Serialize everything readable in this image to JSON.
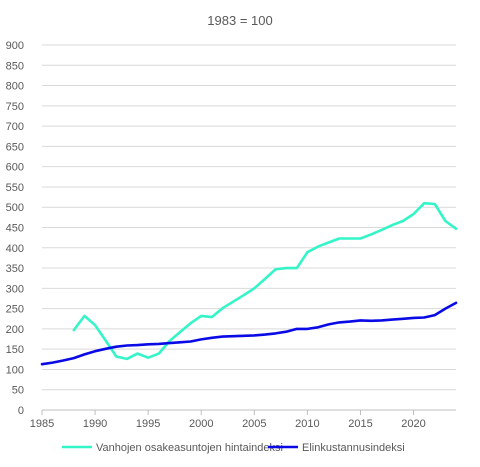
{
  "chart_data": {
    "type": "line",
    "title": "1983 = 100",
    "xlabel": "",
    "ylabel": "",
    "xlim": [
      1985,
      2024
    ],
    "ylim": [
      0,
      900
    ],
    "x_ticks": [
      1985,
      1990,
      1995,
      2000,
      2005,
      2010,
      2015,
      2020
    ],
    "y_ticks": [
      0,
      50,
      100,
      150,
      200,
      250,
      300,
      350,
      400,
      450,
      500,
      550,
      600,
      650,
      700,
      750,
      800,
      850,
      900
    ],
    "grid": true,
    "legend_position": "bottom",
    "series": [
      {
        "name": "Vanhojen osakeasuntojen hintaindeksi",
        "color": "#33f5c8",
        "x": [
          1988,
          1989,
          1990,
          1991,
          1992,
          1993,
          1994,
          1995,
          1996,
          1997,
          1998,
          1999,
          2000,
          2001,
          2002,
          2003,
          2004,
          2005,
          2006,
          2007,
          2008,
          2009,
          2010,
          2011,
          2012,
          2013,
          2014,
          2015,
          2016,
          2017,
          2018,
          2019,
          2020,
          2021,
          2022,
          2023,
          2024
        ],
        "values": [
          197,
          232,
          209,
          171,
          132,
          126,
          139,
          129,
          139,
          170,
          192,
          214,
          232,
          229,
          251,
          267,
          283,
          300,
          323,
          347,
          350,
          350,
          389,
          403,
          413,
          423,
          423,
          423,
          433,
          444,
          456,
          466,
          483,
          510,
          508,
          466,
          447
        ]
      },
      {
        "name": "Elinkustannusindeksi",
        "color": "#0a0ae6",
        "x": [
          1985,
          1986,
          1987,
          1988,
          1989,
          1990,
          1991,
          1992,
          1993,
          1994,
          1995,
          1996,
          1997,
          1998,
          1999,
          2000,
          2001,
          2002,
          2003,
          2004,
          2005,
          2006,
          2007,
          2008,
          2009,
          2010,
          2011,
          2012,
          2013,
          2014,
          2015,
          2016,
          2017,
          2018,
          2019,
          2020,
          2021,
          2022,
          2023,
          2024
        ],
        "values": [
          113,
          117,
          122,
          128,
          137,
          145,
          151,
          156,
          159,
          160,
          162,
          163,
          165,
          167,
          169,
          174,
          178,
          181,
          182,
          183,
          184,
          186,
          189,
          193,
          200,
          200,
          204,
          211,
          216,
          218,
          221,
          220,
          221,
          223,
          225,
          227,
          228,
          234,
          250,
          264
        ]
      }
    ]
  }
}
